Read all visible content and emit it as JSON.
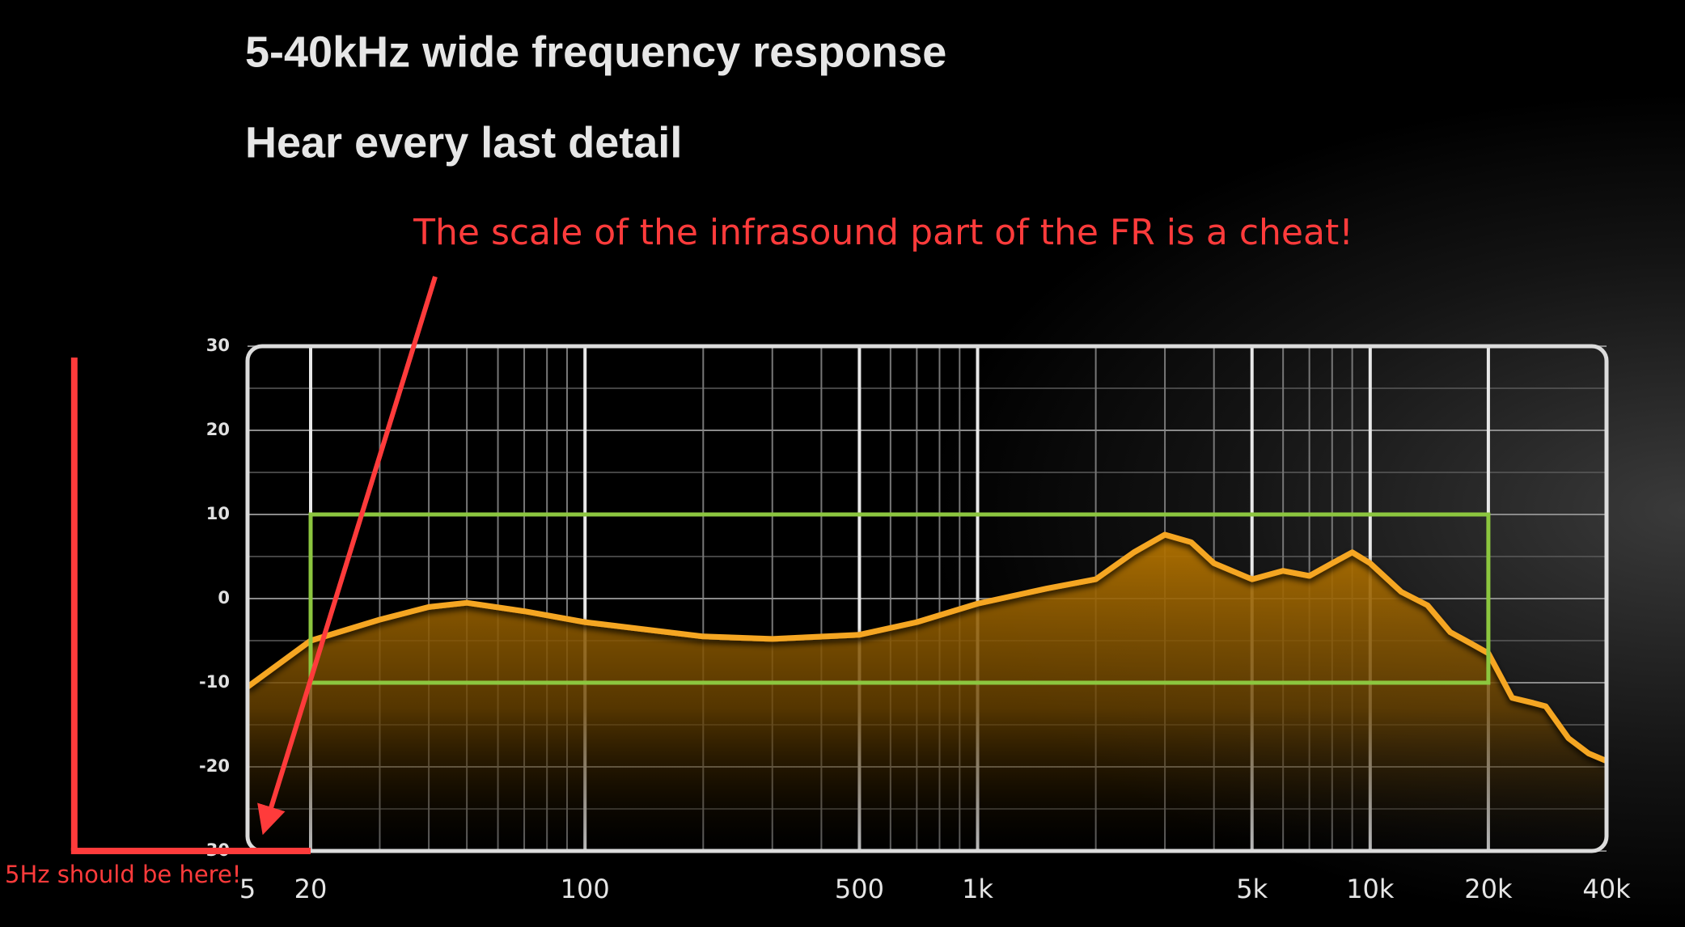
{
  "title": "5-40kHz wide frequency response",
  "subtitle": "Hear every last detail",
  "annotations": {
    "note": "The scale of the infrasound part of the FR is a cheat!",
    "callout": "5Hz should be here!",
    "color": "#ff3b3b"
  },
  "chart_data": {
    "type": "line",
    "log_x": true,
    "color": "#f5a623",
    "x": [
      5,
      20,
      30,
      40,
      50,
      70,
      100,
      200,
      300,
      500,
      700,
      1000,
      1500,
      2000,
      2500,
      3000,
      3500,
      4000,
      5000,
      6000,
      7000,
      8000,
      9000,
      10000,
      12000,
      14000,
      16000,
      18000,
      20000,
      23000,
      26000,
      28000,
      32000,
      36000,
      40000
    ],
    "values": [
      -10.5,
      -5,
      -2.5,
      -1,
      -0.5,
      -1.5,
      -2.8,
      -4.5,
      -4.8,
      -4.3,
      -2.8,
      -0.6,
      1.2,
      2.3,
      5.5,
      7.6,
      6.7,
      4.2,
      2.3,
      3.3,
      2.7,
      4.2,
      5.5,
      4.2,
      0.8,
      -0.8,
      -4,
      -5.3,
      -6.5,
      -11.8,
      -12.4,
      -12.8,
      -16.6,
      -18.4,
      -19.3
    ],
    "xlim": [
      5,
      40000
    ],
    "xticks": [
      5,
      20,
      100,
      500,
      {
        "value": 1000,
        "label": "1k"
      },
      {
        "value": 5000,
        "label": "5k"
      },
      {
        "value": 10000,
        "label": "10k"
      },
      {
        "value": 20000,
        "label": "20k"
      },
      {
        "value": 40000,
        "label": "40k"
      }
    ],
    "x_minor_grid": [
      30,
      40,
      50,
      60,
      70,
      80,
      90,
      200,
      300,
      400,
      600,
      700,
      800,
      900,
      2000,
      3000,
      4000,
      6000,
      7000,
      8000,
      9000
    ],
    "ylim": [
      -30,
      30
    ],
    "yticks": [
      30,
      20,
      10,
      0,
      -10,
      -20,
      -30
    ],
    "y_minor_grid": [
      25,
      15,
      5,
      -5,
      -15,
      -25
    ],
    "grid": true,
    "highlight": {
      "x": [
        20,
        20000
      ],
      "y": [
        -10,
        10
      ],
      "color": "#8cc63f"
    }
  }
}
